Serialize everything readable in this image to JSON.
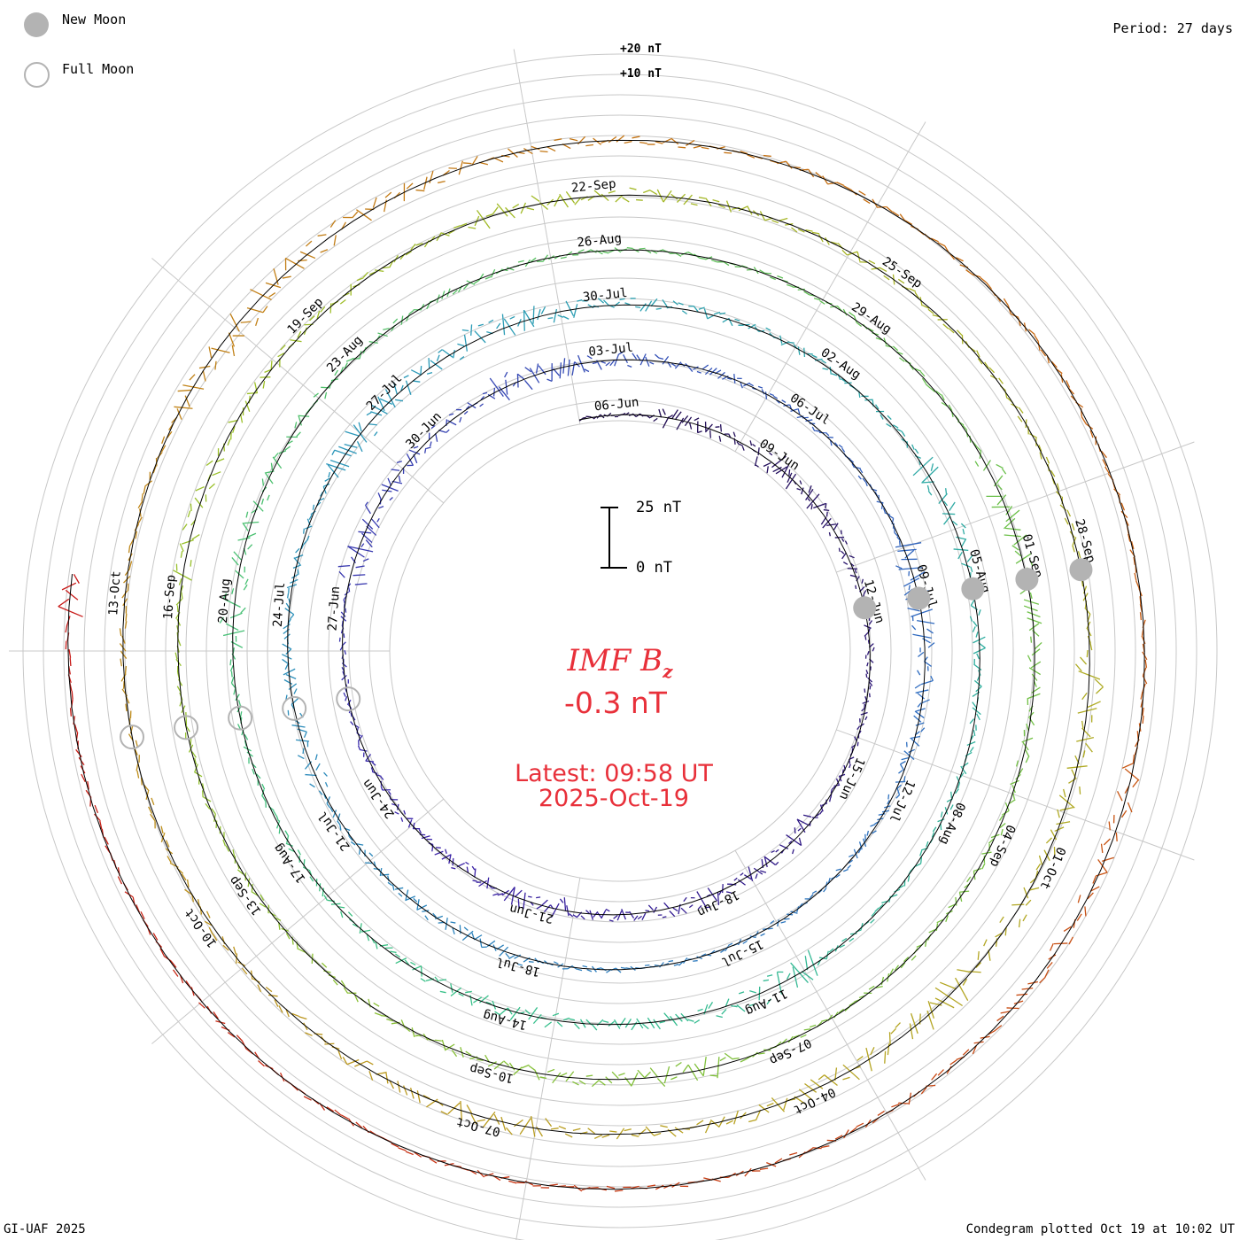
{
  "legend": {
    "new_moon_label": "New Moon",
    "full_moon_label": "Full Moon",
    "new_moon_color": "#b3b3b3",
    "full_moon_color": "#b3b3b3"
  },
  "period_label": "Period: 27 days",
  "footer": {
    "left": "GI-UAF 2025",
    "right": "Condegram plotted Oct 19 at 10:02 UT"
  },
  "center": {
    "title_main": "IMF B",
    "title_sub": "z",
    "value": "-0.3 nT",
    "latest_label": "Latest: 09:58 UT",
    "date": "2025-Oct-19",
    "accent_color": "#e8303a"
  },
  "scale_bar": {
    "top_label": "25 nT",
    "bottom_label": "0 nT"
  },
  "ring_scale": {
    "outer_label": "+20 nT",
    "inner_label": "+10 nT"
  },
  "chart_data": {
    "type": "condegram",
    "title": "IMF Bz",
    "units": "nT",
    "period_days": 27,
    "rings": [
      {
        "index": 1,
        "color": "#1e0a4a",
        "date_labels": [
          "06-Jun",
          "09-Jun",
          "12-Jun",
          "15-Jun",
          "18-Jun",
          "21-Jun",
          "24-Jun",
          "27-Jun",
          "30-Jun"
        ]
      },
      {
        "index": 2,
        "color": "#3a22a8",
        "date_labels": [
          "03-Jul",
          "06-Jul",
          "09-Jul",
          "12-Jul",
          "15-Jul",
          "18-Jul",
          "21-Jul",
          "24-Jul",
          "27-Jul"
        ]
      },
      {
        "index": 3,
        "color": "#2a9ab8",
        "date_labels": [
          "30-Jul",
          "02-Aug",
          "05-Aug",
          "08-Aug",
          "11-Aug",
          "14-Aug",
          "17-Aug",
          "20-Aug",
          "23-Aug"
        ]
      },
      {
        "index": 4,
        "color": "#6cc04a",
        "date_labels": [
          "26-Aug",
          "29-Aug",
          "01-Sep",
          "04-Sep",
          "07-Sep",
          "10-Sep",
          "13-Sep",
          "16-Sep",
          "19-Sep"
        ]
      },
      {
        "index": 5,
        "color": "#b8a020",
        "date_labels": [
          "22-Sep",
          "25-Sep",
          "28-Sep",
          "01-Oct",
          "04-Oct",
          "07-Oct",
          "10-Oct",
          "13-Oct"
        ]
      },
      {
        "index": 6,
        "color": "#c81818",
        "date_labels": []
      }
    ],
    "ring_colors_gradient": [
      "#1e0a4a",
      "#3a22a8",
      "#2f6cc0",
      "#2a9ab8",
      "#35c08a",
      "#6cc04a",
      "#9cc028",
      "#b8a020",
      "#c86a10",
      "#c81818"
    ],
    "latest_value": -0.3,
    "latest_time": "09:58 UT",
    "latest_date": "2025-Oct-19"
  }
}
